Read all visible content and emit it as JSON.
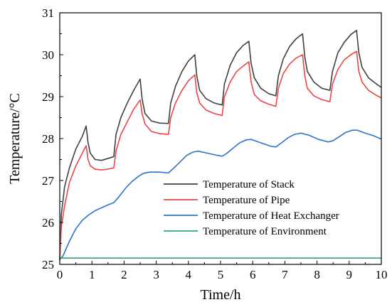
{
  "chart_data": {
    "type": "line",
    "title": "",
    "xlabel": "Time/h",
    "ylabel": "Temperature/°C",
    "xlim": [
      0,
      10
    ],
    "ylim": [
      25,
      31
    ],
    "xticks": [
      "0",
      "1",
      "2",
      "3",
      "4",
      "5",
      "6",
      "7",
      "8",
      "9",
      "10"
    ],
    "yticks": [
      "25",
      "26",
      "27",
      "28",
      "29",
      "30",
      "31"
    ],
    "grid": false,
    "legend_position": "bottom-right",
    "series": [
      {
        "name": "Temperature of Stack",
        "color": "#404040",
        "points": [
          [
            0,
            25.1
          ],
          [
            0.05,
            26.2
          ],
          [
            0.15,
            26.85
          ],
          [
            0.3,
            27.3
          ],
          [
            0.5,
            27.75
          ],
          [
            0.7,
            28.05
          ],
          [
            0.82,
            28.3
          ],
          [
            0.88,
            27.9
          ],
          [
            0.95,
            27.65
          ],
          [
            1.1,
            27.5
          ],
          [
            1.3,
            27.48
          ],
          [
            1.6,
            27.55
          ],
          [
            1.68,
            27.57
          ],
          [
            1.75,
            28.1
          ],
          [
            1.9,
            28.5
          ],
          [
            2.1,
            28.85
          ],
          [
            2.3,
            29.15
          ],
          [
            2.5,
            29.42
          ],
          [
            2.56,
            28.95
          ],
          [
            2.65,
            28.6
          ],
          [
            2.85,
            28.42
          ],
          [
            3.1,
            28.37
          ],
          [
            3.38,
            28.36
          ],
          [
            3.45,
            28.85
          ],
          [
            3.6,
            29.25
          ],
          [
            3.8,
            29.6
          ],
          [
            4.0,
            29.85
          ],
          [
            4.2,
            30.0
          ],
          [
            4.26,
            29.5
          ],
          [
            4.35,
            29.15
          ],
          [
            4.55,
            28.95
          ],
          [
            4.8,
            28.85
          ],
          [
            5.05,
            28.8
          ],
          [
            5.12,
            29.3
          ],
          [
            5.3,
            29.75
          ],
          [
            5.5,
            30.05
          ],
          [
            5.7,
            30.22
          ],
          [
            5.88,
            30.32
          ],
          [
            5.95,
            29.8
          ],
          [
            6.05,
            29.45
          ],
          [
            6.25,
            29.2
          ],
          [
            6.5,
            29.07
          ],
          [
            6.72,
            29.02
          ],
          [
            6.8,
            29.5
          ],
          [
            6.95,
            29.9
          ],
          [
            7.15,
            30.2
          ],
          [
            7.35,
            30.38
          ],
          [
            7.55,
            30.5
          ],
          [
            7.62,
            29.95
          ],
          [
            7.7,
            29.6
          ],
          [
            7.9,
            29.35
          ],
          [
            8.15,
            29.2
          ],
          [
            8.4,
            29.15
          ],
          [
            8.48,
            29.6
          ],
          [
            8.65,
            30.05
          ],
          [
            8.85,
            30.3
          ],
          [
            9.05,
            30.48
          ],
          [
            9.23,
            30.58
          ],
          [
            9.3,
            30.05
          ],
          [
            9.4,
            29.7
          ],
          [
            9.6,
            29.45
          ],
          [
            9.85,
            29.3
          ],
          [
            10.0,
            29.22
          ]
        ]
      },
      {
        "name": "Temperature of Pipe",
        "color": "#e84747",
        "points": [
          [
            0,
            25.1
          ],
          [
            0.05,
            25.9
          ],
          [
            0.15,
            26.4
          ],
          [
            0.3,
            26.95
          ],
          [
            0.5,
            27.35
          ],
          [
            0.7,
            27.65
          ],
          [
            0.82,
            27.83
          ],
          [
            0.88,
            27.5
          ],
          [
            0.95,
            27.35
          ],
          [
            1.1,
            27.27
          ],
          [
            1.3,
            27.25
          ],
          [
            1.55,
            27.28
          ],
          [
            1.68,
            27.3
          ],
          [
            1.75,
            27.7
          ],
          [
            1.9,
            28.1
          ],
          [
            2.1,
            28.4
          ],
          [
            2.3,
            28.7
          ],
          [
            2.5,
            28.92
          ],
          [
            2.56,
            28.6
          ],
          [
            2.65,
            28.35
          ],
          [
            2.85,
            28.17
          ],
          [
            3.1,
            28.12
          ],
          [
            3.38,
            28.1
          ],
          [
            3.45,
            28.5
          ],
          [
            3.6,
            28.85
          ],
          [
            3.8,
            29.15
          ],
          [
            4.0,
            29.38
          ],
          [
            4.2,
            29.52
          ],
          [
            4.26,
            29.1
          ],
          [
            4.35,
            28.85
          ],
          [
            4.55,
            28.68
          ],
          [
            4.8,
            28.6
          ],
          [
            5.05,
            28.55
          ],
          [
            5.12,
            29.0
          ],
          [
            5.3,
            29.35
          ],
          [
            5.5,
            29.6
          ],
          [
            5.7,
            29.73
          ],
          [
            5.88,
            29.83
          ],
          [
            5.95,
            29.35
          ],
          [
            6.05,
            29.05
          ],
          [
            6.25,
            28.9
          ],
          [
            6.5,
            28.82
          ],
          [
            6.72,
            28.77
          ],
          [
            6.8,
            29.2
          ],
          [
            6.95,
            29.55
          ],
          [
            7.15,
            29.78
          ],
          [
            7.35,
            29.92
          ],
          [
            7.55,
            30.0
          ],
          [
            7.62,
            29.5
          ],
          [
            7.7,
            29.2
          ],
          [
            7.9,
            29.02
          ],
          [
            8.15,
            28.93
          ],
          [
            8.4,
            28.88
          ],
          [
            8.48,
            29.3
          ],
          [
            8.65,
            29.65
          ],
          [
            8.85,
            29.88
          ],
          [
            9.05,
            30.0
          ],
          [
            9.23,
            30.08
          ],
          [
            9.3,
            29.6
          ],
          [
            9.4,
            29.35
          ],
          [
            9.6,
            29.15
          ],
          [
            9.85,
            29.03
          ],
          [
            10.0,
            28.97
          ]
        ]
      },
      {
        "name": "Temperature of Heat Exchanger",
        "color": "#2e73c9",
        "points": [
          [
            0,
            25.12
          ],
          [
            0.1,
            25.2
          ],
          [
            0.3,
            25.55
          ],
          [
            0.5,
            25.85
          ],
          [
            0.7,
            26.05
          ],
          [
            0.9,
            26.18
          ],
          [
            1.1,
            26.28
          ],
          [
            1.3,
            26.35
          ],
          [
            1.5,
            26.42
          ],
          [
            1.68,
            26.47
          ],
          [
            1.85,
            26.62
          ],
          [
            2.05,
            26.82
          ],
          [
            2.25,
            26.98
          ],
          [
            2.45,
            27.1
          ],
          [
            2.6,
            27.17
          ],
          [
            2.8,
            27.2
          ],
          [
            3.1,
            27.2
          ],
          [
            3.38,
            27.18
          ],
          [
            3.55,
            27.3
          ],
          [
            3.75,
            27.45
          ],
          [
            3.95,
            27.6
          ],
          [
            4.15,
            27.68
          ],
          [
            4.3,
            27.7
          ],
          [
            4.6,
            27.65
          ],
          [
            4.9,
            27.6
          ],
          [
            5.05,
            27.58
          ],
          [
            5.2,
            27.65
          ],
          [
            5.4,
            27.78
          ],
          [
            5.6,
            27.9
          ],
          [
            5.8,
            27.97
          ],
          [
            5.95,
            27.98
          ],
          [
            6.25,
            27.9
          ],
          [
            6.55,
            27.82
          ],
          [
            6.72,
            27.8
          ],
          [
            6.9,
            27.9
          ],
          [
            7.1,
            28.02
          ],
          [
            7.3,
            28.1
          ],
          [
            7.5,
            28.13
          ],
          [
            7.75,
            28.08
          ],
          [
            8.05,
            27.98
          ],
          [
            8.35,
            27.92
          ],
          [
            8.5,
            27.95
          ],
          [
            8.7,
            28.05
          ],
          [
            8.9,
            28.15
          ],
          [
            9.1,
            28.2
          ],
          [
            9.25,
            28.2
          ],
          [
            9.5,
            28.13
          ],
          [
            9.75,
            28.07
          ],
          [
            10.0,
            27.99
          ]
        ]
      },
      {
        "name": "Temperature of Environment",
        "color": "#2aa876",
        "points": [
          [
            0,
            25.15
          ],
          [
            10.0,
            25.15
          ]
        ]
      }
    ]
  }
}
